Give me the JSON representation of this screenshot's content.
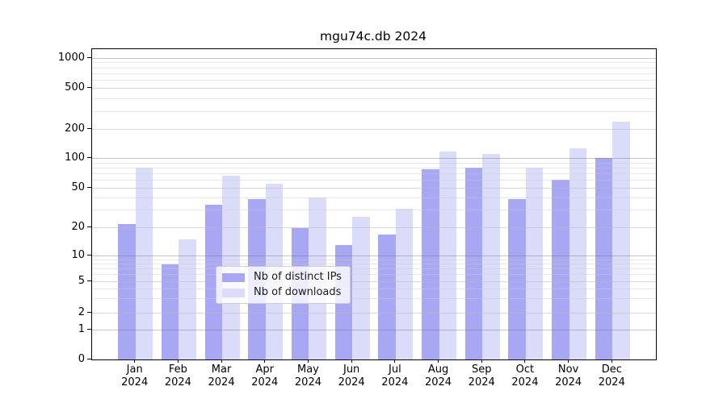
{
  "title": "mgu74c.db 2024",
  "legend": {
    "items": [
      {
        "label": "Nb of distinct IPs"
      },
      {
        "label": "Nb of downloads"
      }
    ]
  },
  "chart_data": {
    "type": "bar",
    "title": "mgu74c.db 2024",
    "categories": [
      "Jan 2024",
      "Feb 2024",
      "Mar 2024",
      "Apr 2024",
      "May 2024",
      "Jun 2024",
      "Jul 2024",
      "Aug 2024",
      "Sep 2024",
      "Oct 2024",
      "Nov 2024",
      "Dec 2024"
    ],
    "series": [
      {
        "name": "Nb of distinct IPs",
        "values": [
          22,
          8,
          34,
          39,
          20,
          13,
          17,
          78,
          80,
          39,
          60,
          101
        ]
      },
      {
        "name": "Nb of downloads",
        "values": [
          81,
          15,
          66,
          55,
          40,
          26,
          31,
          119,
          112,
          81,
          128,
          240
        ]
      }
    ],
    "colors": [
      "#a7a7f3",
      "#dbdbfa"
    ],
    "yscale": "symlog",
    "yticks": [
      0,
      1,
      2,
      5,
      10,
      20,
      50,
      100,
      200,
      500,
      1000
    ],
    "ylim": [
      0,
      1100
    ],
    "grid": true,
    "legend_position": "lower center",
    "xlabel": "",
    "ylabel": ""
  }
}
